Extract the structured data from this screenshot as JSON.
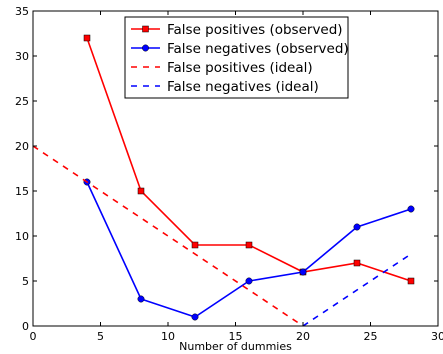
{
  "chart_data": {
    "type": "line",
    "title": "",
    "xlabel": "Number of dummies",
    "ylabel": "",
    "xlim": [
      0,
      30
    ],
    "ylim": [
      0,
      35
    ],
    "xticks": [
      "0",
      "5",
      "10",
      "15",
      "20",
      "25",
      "30"
    ],
    "yticks": [
      "0",
      "5",
      "10",
      "15",
      "20",
      "25",
      "30",
      "35"
    ],
    "grid": false,
    "legend_position": "top-right",
    "series": [
      {
        "name": "False positives (observed)",
        "color": "#ff0000",
        "line_style": "solid",
        "marker": "square",
        "x": [
          4,
          8,
          12,
          16,
          20,
          24,
          28
        ],
        "y": [
          32,
          15,
          9,
          9,
          6,
          7,
          5
        ]
      },
      {
        "name": "False negatives (observed)",
        "color": "#0000ff",
        "line_style": "solid",
        "marker": "circle",
        "x": [
          4,
          8,
          12,
          16,
          20,
          24,
          28
        ],
        "y": [
          16,
          3,
          1,
          5,
          6,
          11,
          13
        ]
      },
      {
        "name": "False positives (ideal)",
        "color": "#ff0000",
        "line_style": "dashed",
        "marker": "none",
        "x": [
          0,
          20
        ],
        "y": [
          20,
          0
        ]
      },
      {
        "name": "False negatives (ideal)",
        "color": "#0000ff",
        "line_style": "dashed",
        "marker": "none",
        "x": [
          20,
          28
        ],
        "y": [
          0,
          8
        ]
      }
    ]
  }
}
